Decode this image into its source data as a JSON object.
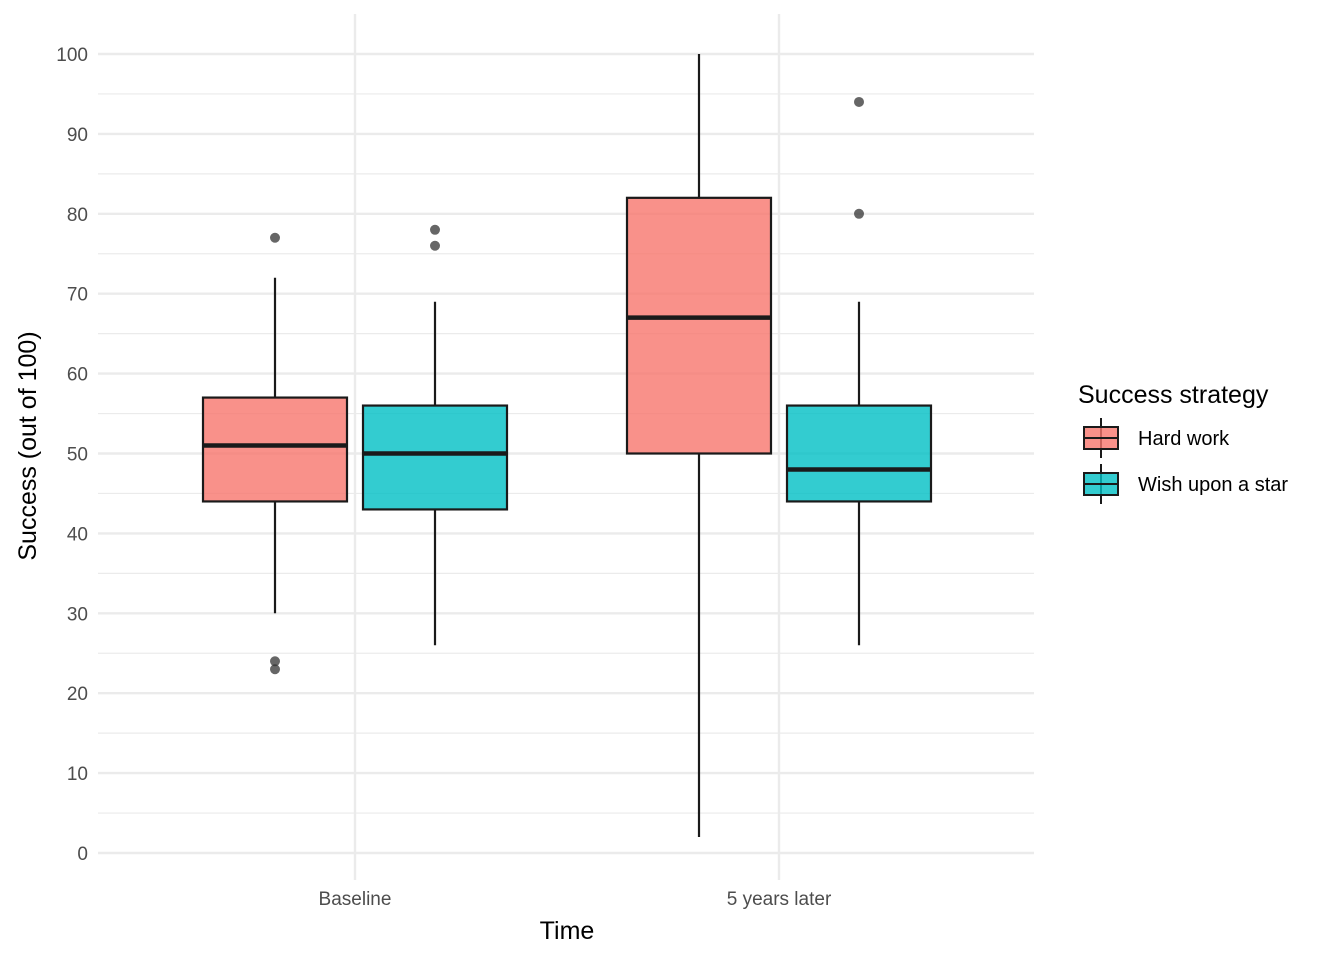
{
  "chart_data": {
    "type": "boxplot",
    "xlabel": "Time",
    "ylabel": "Success (out of 100)",
    "ylim": [
      0,
      100
    ],
    "yticks": [
      0,
      10,
      20,
      30,
      40,
      50,
      60,
      70,
      80,
      90,
      100
    ],
    "categories": [
      "Baseline",
      "5 years later"
    ],
    "grid": true,
    "legend": {
      "title": "Success strategy",
      "placement": "right"
    },
    "series": [
      {
        "name": "Hard work",
        "color": "#F8766D",
        "boxes": [
          {
            "category": "Baseline",
            "whisker_low": 30,
            "q1": 44,
            "median": 51,
            "q3": 57,
            "whisker_high": 72,
            "outliers": [
              77,
              24,
              23
            ]
          },
          {
            "category": "5 years later",
            "whisker_low": 2,
            "q1": 50,
            "median": 67,
            "q3": 82,
            "whisker_high": 100,
            "outliers": []
          }
        ]
      },
      {
        "name": "Wish upon a star",
        "color": "#00BFC4",
        "boxes": [
          {
            "category": "Baseline",
            "whisker_low": 26,
            "q1": 43,
            "median": 50,
            "q3": 56,
            "whisker_high": 69,
            "outliers": [
              78,
              76
            ]
          },
          {
            "category": "5 years later",
            "whisker_low": 26,
            "q1": 44,
            "median": 48,
            "q3": 56,
            "whisker_high": 69,
            "outliers": [
              94,
              80
            ]
          }
        ]
      }
    ]
  }
}
